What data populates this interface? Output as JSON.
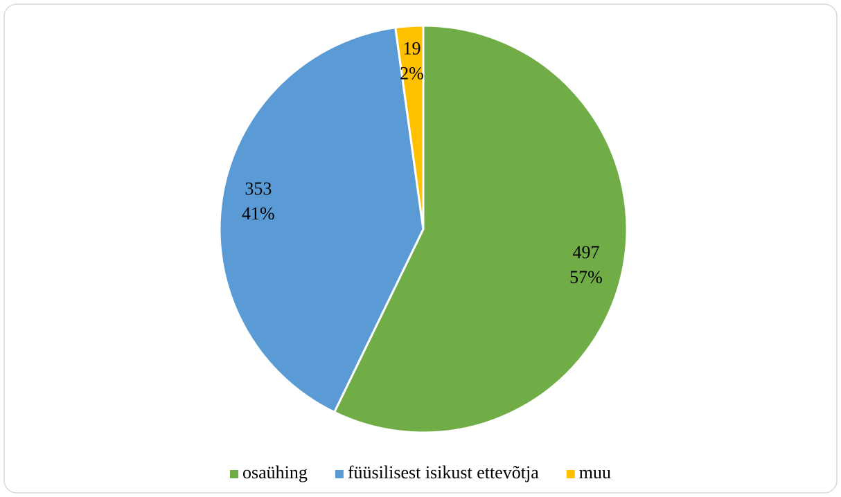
{
  "chart_data": {
    "type": "pie",
    "categories": [
      "osaühing",
      "füüsilisest isikust ettevõtja",
      "muu"
    ],
    "values": [
      497,
      353,
      19
    ],
    "percent_values": [
      57,
      41,
      2
    ],
    "percent_labels": [
      "57%",
      "41%",
      "2%"
    ],
    "colors": [
      "#70ad47",
      "#5b9bd5",
      "#ffc000"
    ],
    "legend": "bottom"
  }
}
